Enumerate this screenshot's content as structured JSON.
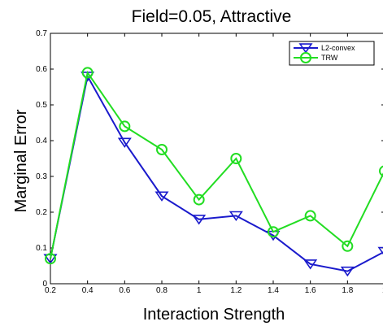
{
  "chart_data": {
    "type": "line",
    "title": "Field=0.05, Attractive",
    "xlabel": "Interaction Strength",
    "ylabel": "Marginal Error",
    "x": [
      0.2,
      0.4,
      0.6,
      0.8,
      1.0,
      1.2,
      1.4,
      1.6,
      1.8,
      2.0
    ],
    "xlim": [
      0.2,
      2.0
    ],
    "ylim": [
      0,
      0.7
    ],
    "xticks": [
      "0.2",
      "0.4",
      "0.6",
      "0.8",
      "1",
      "1.2",
      "1.4",
      "1.6",
      "1.8",
      "2"
    ],
    "yticks": [
      "0",
      "0.1",
      "0.2",
      "0.3",
      "0.4",
      "0.5",
      "0.6",
      "0.7"
    ],
    "grid": false,
    "legend_position": "top-right",
    "series": [
      {
        "name": "L2-convex",
        "color": "#1a1acc",
        "marker": "triangle-down",
        "values": [
          0.07,
          0.58,
          0.395,
          0.245,
          0.18,
          0.19,
          0.135,
          0.055,
          0.035,
          0.09
        ]
      },
      {
        "name": "TRW",
        "color": "#22dd22",
        "marker": "circle",
        "values": [
          0.07,
          0.59,
          0.44,
          0.375,
          0.235,
          0.35,
          0.145,
          0.19,
          0.105,
          0.315
        ]
      }
    ]
  }
}
